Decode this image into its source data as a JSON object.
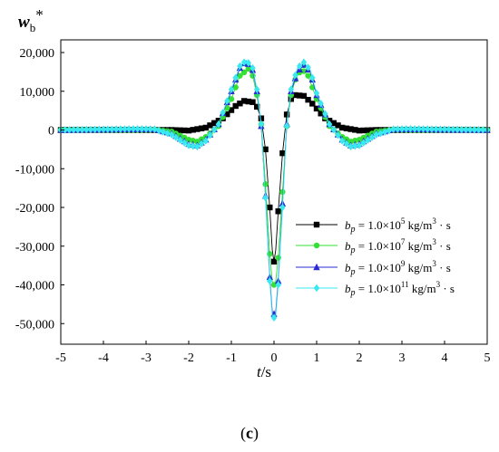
{
  "chart_data": {
    "type": "line",
    "ylabel_main": "w",
    "ylabel_sub": "b",
    "ylabel_sup": "*",
    "xlabel_main": "t",
    "xlabel_unit": "/s",
    "xlim": [
      -5,
      5
    ],
    "ylim": [
      -50000,
      20000
    ],
    "x_ticks": [
      -5,
      -4,
      -3,
      -2,
      -1,
      0,
      1,
      2,
      3,
      4,
      5
    ],
    "x_tick_labels": [
      "-5",
      "-4",
      "-3",
      "-2",
      "-1",
      "0",
      "1",
      "2",
      "3",
      "4",
      "5"
    ],
    "y_ticks": [
      20000,
      10000,
      0,
      -10000,
      -20000,
      -30000,
      -40000,
      -50000
    ],
    "y_tick_labels": [
      "20,000",
      "10,000",
      "0",
      "-10,000",
      "-20,000",
      "-30,000",
      "-40,000",
      "-50,000"
    ],
    "legend_position": "center-right",
    "series": [
      {
        "legend_prefix": "1.0×10",
        "legend_exp": "5",
        "color": "#000000",
        "marker": "square",
        "points": [
          [
            -5,
            0
          ],
          [
            -2.4,
            0
          ],
          [
            -2.0,
            -150
          ],
          [
            -1.6,
            600
          ],
          [
            -1.2,
            3000
          ],
          [
            -0.9,
            6200
          ],
          [
            -0.7,
            7500
          ],
          [
            -0.5,
            7200
          ],
          [
            -0.4,
            6000
          ],
          [
            -0.3,
            3000
          ],
          [
            -0.2,
            -5000
          ],
          [
            -0.1,
            -20000
          ],
          [
            -0.04,
            -31000
          ],
          [
            0,
            -34000
          ],
          [
            0.04,
            -31000
          ],
          [
            0.1,
            -21000
          ],
          [
            0.2,
            -6000
          ],
          [
            0.3,
            4000
          ],
          [
            0.4,
            8000
          ],
          [
            0.5,
            9000
          ],
          [
            0.7,
            8800
          ],
          [
            0.9,
            6800
          ],
          [
            1.2,
            3000
          ],
          [
            1.6,
            600
          ],
          [
            2.0,
            -150
          ],
          [
            2.4,
            0
          ],
          [
            5,
            0
          ]
        ]
      },
      {
        "legend_prefix": "1.0×10",
        "legend_exp": "7",
        "color": "#33e033",
        "marker": "circle",
        "points": [
          [
            -5,
            0
          ],
          [
            -3.2,
            0
          ],
          [
            -2.8,
            100
          ],
          [
            -2.4,
            -400
          ],
          [
            -2.0,
            -2500
          ],
          [
            -1.8,
            -3000
          ],
          [
            -1.6,
            -1800
          ],
          [
            -1.3,
            1000
          ],
          [
            -1.0,
            8000
          ],
          [
            -0.8,
            14000
          ],
          [
            -0.6,
            15800
          ],
          [
            -0.5,
            14000
          ],
          [
            -0.4,
            9000
          ],
          [
            -0.3,
            1500
          ],
          [
            -0.2,
            -14000
          ],
          [
            -0.1,
            -32000
          ],
          [
            -0.04,
            -39000
          ],
          [
            0,
            -40000
          ],
          [
            0.04,
            -39000
          ],
          [
            0.1,
            -33000
          ],
          [
            0.2,
            -16000
          ],
          [
            0.3,
            1000
          ],
          [
            0.4,
            9000
          ],
          [
            0.5,
            13000
          ],
          [
            0.65,
            15800
          ],
          [
            0.8,
            14000
          ],
          [
            1.0,
            8000
          ],
          [
            1.3,
            1000
          ],
          [
            1.6,
            -1800
          ],
          [
            1.8,
            -3000
          ],
          [
            2.0,
            -2500
          ],
          [
            2.4,
            -400
          ],
          [
            2.8,
            100
          ],
          [
            3.2,
            0
          ],
          [
            5,
            0
          ]
        ]
      },
      {
        "legend_prefix": "1.0×10",
        "legend_exp": "9",
        "color": "#2a2ad0",
        "marker": "triangle",
        "points": [
          [
            -5,
            0
          ],
          [
            -3.2,
            200
          ],
          [
            -2.8,
            200
          ],
          [
            -2.4,
            -900
          ],
          [
            -2.0,
            -3600
          ],
          [
            -1.8,
            -4000
          ],
          [
            -1.6,
            -2500
          ],
          [
            -1.3,
            1500
          ],
          [
            -1.0,
            10000
          ],
          [
            -0.8,
            16000
          ],
          [
            -0.65,
            17800
          ],
          [
            -0.5,
            15500
          ],
          [
            -0.4,
            10000
          ],
          [
            -0.3,
            1000
          ],
          [
            -0.2,
            -17000
          ],
          [
            -0.1,
            -38000
          ],
          [
            -0.04,
            -47000
          ],
          [
            0,
            -47500
          ],
          [
            0.04,
            -47000
          ],
          [
            0.1,
            -39000
          ],
          [
            0.2,
            -19000
          ],
          [
            0.3,
            1500
          ],
          [
            0.4,
            10000
          ],
          [
            0.55,
            15000
          ],
          [
            0.7,
            16800
          ],
          [
            0.85,
            15000
          ],
          [
            1.0,
            9000
          ],
          [
            1.3,
            1500
          ],
          [
            1.6,
            -2500
          ],
          [
            1.8,
            -4000
          ],
          [
            2.0,
            -3600
          ],
          [
            2.4,
            -900
          ],
          [
            2.8,
            200
          ],
          [
            3.2,
            200
          ],
          [
            5,
            0
          ]
        ]
      },
      {
        "legend_prefix": "1.0×10",
        "legend_exp": "11",
        "color": "#3ae8f0",
        "marker": "diamond",
        "points": [
          [
            -5,
            0
          ],
          [
            -3.2,
            300
          ],
          [
            -2.8,
            200
          ],
          [
            -2.4,
            -1200
          ],
          [
            -2.0,
            -4000
          ],
          [
            -1.8,
            -4300
          ],
          [
            -1.6,
            -2800
          ],
          [
            -1.3,
            1500
          ],
          [
            -1.0,
            10500
          ],
          [
            -0.8,
            16500
          ],
          [
            -0.65,
            18000
          ],
          [
            -0.5,
            16000
          ],
          [
            -0.4,
            10500
          ],
          [
            -0.3,
            1500
          ],
          [
            -0.2,
            -17500
          ],
          [
            -0.1,
            -39000
          ],
          [
            -0.04,
            -48000
          ],
          [
            0,
            -48500
          ],
          [
            0.04,
            -48000
          ],
          [
            0.1,
            -40000
          ],
          [
            0.2,
            -20000
          ],
          [
            0.3,
            1000
          ],
          [
            0.4,
            10500
          ],
          [
            0.55,
            16000
          ],
          [
            0.7,
            17500
          ],
          [
            0.85,
            15500
          ],
          [
            1.0,
            9500
          ],
          [
            1.3,
            1500
          ],
          [
            1.6,
            -2800
          ],
          [
            1.8,
            -4300
          ],
          [
            2.0,
            -4000
          ],
          [
            2.4,
            -1200
          ],
          [
            2.8,
            200
          ],
          [
            3.2,
            300
          ],
          [
            5,
            0
          ]
        ]
      }
    ]
  },
  "legend_var": "b",
  "legend_var_sub": "p",
  "legend_eq": " = ",
  "legend_unit": " kg/m",
  "legend_unit_sup": "3",
  "legend_unit_tail": " · s",
  "caption_open": "(",
  "caption_letter": "c",
  "caption_close": ")"
}
